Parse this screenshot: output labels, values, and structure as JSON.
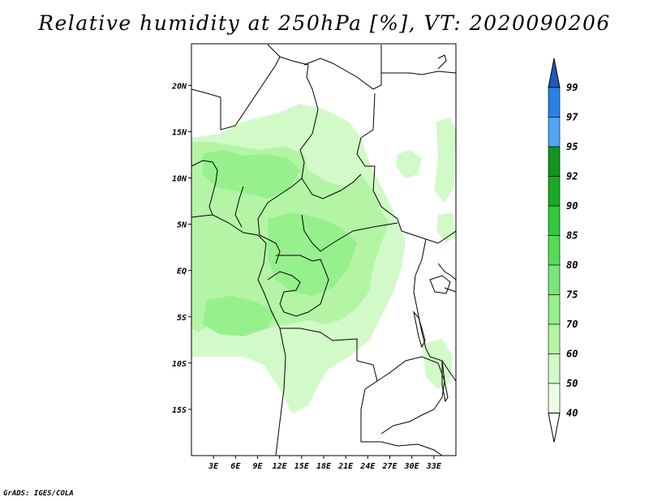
{
  "title": "Relative humidity at 250hPa [%], VT: 2020090206",
  "credit": "GrADS: IGES/COLA",
  "map": {
    "lon_range": [
      0,
      36
    ],
    "lat_range": [
      -20,
      24.5
    ],
    "lat_tick_labels": [
      "20N",
      "15N",
      "10N",
      "5N",
      "EQ",
      "5S",
      "10S",
      "15S"
    ],
    "lat_tick_values": [
      20,
      15,
      10,
      5,
      0,
      -5,
      -10,
      -15
    ],
    "lon_tick_labels": [
      "3E",
      "6E",
      "9E",
      "12E",
      "15E",
      "18E",
      "21E",
      "24E",
      "27E",
      "30E",
      "33E"
    ],
    "lon_tick_values": [
      3,
      6,
      9,
      12,
      15,
      18,
      21,
      24,
      27,
      30,
      33
    ]
  },
  "colorbar": {
    "labels": [
      "99",
      "97",
      "95",
      "92",
      "90",
      "85",
      "80",
      "75",
      "70",
      "60",
      "50",
      "40"
    ],
    "levels": [
      99,
      97,
      95,
      92,
      90,
      85,
      80,
      75,
      70,
      60,
      50,
      40
    ],
    "colors": [
      "#1e6ed2",
      "#2882e6",
      "#50a5f5",
      "#0f961e",
      "#19aa23",
      "#32c83c",
      "#55dc55",
      "#78e678",
      "#96f08c",
      "#b4f5a5",
      "#d2fac8",
      "#ebfde6"
    ],
    "top_arrow_color": "#1e5abe",
    "bottom_arrow_color": "#ffffff"
  },
  "colors": {
    "humidity_light": "#d2fac8",
    "humidity_medium": "#b4f5a5",
    "humidity_strong": "#96f08c"
  }
}
